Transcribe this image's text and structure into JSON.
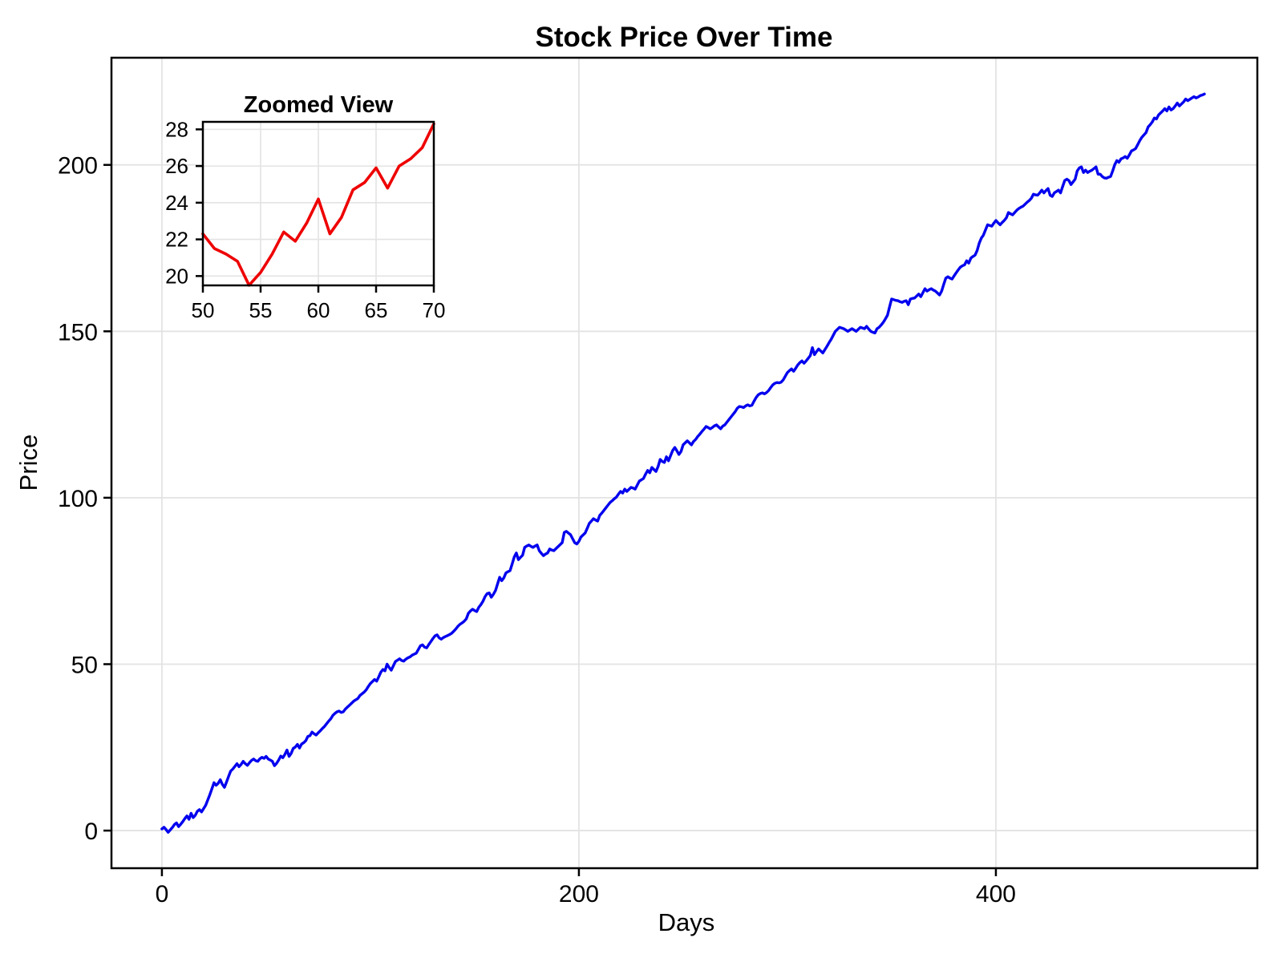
{
  "chart_data": [
    {
      "id": "main",
      "type": "line",
      "title": "Stock Price Over Time",
      "xlabel": "Days",
      "ylabel": "Price",
      "xticks": [
        0,
        200,
        400
      ],
      "yticks": [
        0,
        50,
        100,
        150,
        200
      ],
      "xlim": [
        -24.2,
        525.4
      ],
      "ylim": [
        -11.3,
        232.2
      ],
      "grid": true,
      "legend": "none",
      "series": [
        {
          "name": "price",
          "color": "#0000EE",
          "x_start": 0,
          "x_step": 1,
          "values": [
            0.5,
            1.0,
            0.3,
            -0.5,
            0.2,
            0.9,
            1.8,
            2.3,
            1.2,
            1.9,
            2.7,
            3.6,
            4.4,
            3.4,
            5.2,
            3.9,
            4.6,
            5.8,
            6.3,
            5.6,
            6.6,
            7.6,
            9.2,
            10.8,
            12.6,
            14.4,
            13.6,
            14.2,
            15.3,
            13.9,
            13.0,
            14.6,
            16.3,
            17.9,
            18.5,
            19.3,
            20.1,
            19.2,
            19.9,
            20.8,
            20.1,
            19.6,
            20.4,
            21.1,
            21.5,
            21.0,
            20.8,
            21.6,
            22.0,
            21.7,
            22.3,
            21.5,
            21.2,
            20.8,
            19.5,
            20.2,
            21.2,
            22.4,
            21.9,
            22.9,
            24.2,
            22.3,
            23.2,
            24.7,
            25.1,
            25.9,
            24.8,
            26.0,
            26.4,
            27.0,
            28.3,
            28.5,
            29.6,
            29.1,
            28.7,
            29.4,
            30.0,
            30.7,
            31.3,
            32.1,
            32.9,
            33.6,
            34.6,
            35.2,
            35.7,
            35.9,
            35.5,
            35.7,
            36.5,
            37.1,
            37.7,
            38.3,
            38.9,
            39.3,
            39.7,
            40.6,
            41.1,
            41.6,
            42.3,
            43.3,
            44.2,
            44.8,
            45.4,
            44.9,
            46.2,
            47.6,
            48.4,
            48.0,
            50.0,
            49.0,
            48.2,
            49.5,
            50.8,
            51.2,
            51.6,
            51.1,
            50.9,
            51.5,
            51.9,
            52.2,
            52.7,
            53.0,
            53.3,
            54.4,
            55.5,
            55.8,
            55.1,
            54.9,
            55.9,
            56.8,
            57.7,
            58.5,
            58.8,
            57.9,
            57.5,
            58.0,
            58.3,
            58.6,
            58.9,
            59.3,
            59.9,
            60.6,
            61.4,
            62.0,
            62.4,
            62.9,
            63.6,
            65.3,
            66.0,
            66.5,
            66.1,
            65.8,
            67.1,
            67.9,
            68.9,
            70.3,
            71.2,
            71.4,
            70.1,
            71.0,
            72.1,
            74.1,
            76.1,
            75.1,
            75.9,
            77.4,
            77.8,
            78.1,
            80.1,
            82.2,
            83.4,
            81.4,
            82.1,
            82.7,
            85.1,
            85.5,
            85.8,
            85.4,
            85.1,
            85.5,
            85.8,
            84.1,
            83.3,
            82.6,
            83.1,
            83.4,
            84.6,
            84.3,
            84.1,
            84.7,
            85.3,
            85.9,
            86.5,
            89.6,
            89.9,
            89.4,
            88.9,
            87.7,
            86.5,
            86.1,
            86.9,
            88.2,
            88.8,
            89.4,
            90.8,
            92.3,
            93.0,
            93.7,
            93.3,
            93.0,
            94.7,
            95.4,
            96.2,
            97.0,
            97.8,
            98.6,
            99.1,
            99.7,
            100.2,
            101.1,
            101.9,
            101.4,
            102.6,
            101.9,
            102.5,
            103.1,
            102.9,
            102.6,
            103.8,
            105.0,
            105.4,
            105.8,
            107.1,
            108.2,
            107.5,
            109.1,
            108.5,
            107.9,
            109.4,
            111.5,
            110.9,
            110.6,
            112.3,
            111.1,
            112.7,
            114.2,
            115.1,
            114.1,
            113.0,
            113.9,
            115.9,
            116.5,
            117.1,
            116.5,
            115.9,
            116.9,
            117.5,
            118.4,
            119.1,
            119.9,
            120.6,
            121.4,
            121.1,
            120.7,
            121.1,
            121.6,
            121.9,
            121.3,
            120.7,
            121.5,
            121.9,
            122.7,
            123.5,
            124.3,
            125.1,
            125.9,
            126.9,
            127.4,
            127.3,
            127.1,
            127.6,
            127.9,
            127.6,
            127.8,
            129.0,
            130.1,
            130.9,
            131.3,
            131.5,
            131.2,
            131.6,
            132.2,
            133.1,
            133.9,
            134.4,
            134.6,
            134.5,
            134.7,
            135.4,
            136.5,
            137.6,
            138.2,
            138.7,
            138.0,
            138.9,
            139.9,
            140.6,
            141.1,
            140.4,
            141.1,
            141.9,
            142.7,
            145.1,
            143.0,
            143.9,
            144.7,
            144.1,
            143.5,
            144.5,
            145.5,
            146.6,
            147.6,
            148.8,
            150.0,
            150.6,
            151.2,
            151.0,
            150.8,
            150.4,
            150.0,
            150.4,
            150.8,
            150.4,
            150.0,
            150.6,
            151.2,
            151.0,
            150.8,
            151.5,
            150.7,
            150.0,
            149.7,
            149.5,
            150.8,
            151.2,
            151.9,
            152.7,
            153.7,
            154.8,
            157.3,
            159.7,
            159.5,
            159.3,
            159.2,
            158.9,
            158.7,
            159.0,
            159.2,
            158.0,
            159.7,
            159.9,
            160.0,
            160.6,
            161.2,
            160.4,
            161.6,
            162.8,
            162.1,
            162.5,
            162.8,
            162.4,
            162.1,
            161.5,
            160.9,
            162.1,
            164.1,
            166.0,
            166.4,
            166.0,
            165.7,
            166.7,
            167.6,
            168.5,
            169.3,
            169.7,
            170.0,
            171.2,
            170.5,
            172.0,
            172.5,
            172.9,
            174.3,
            176.5,
            178.0,
            178.9,
            180.5,
            182.0,
            181.8,
            181.6,
            182.5,
            183.3,
            182.6,
            182.0,
            182.7,
            183.3,
            184.1,
            185.7,
            185.3,
            185.0,
            185.7,
            186.4,
            186.9,
            187.3,
            187.6,
            188.2,
            188.8,
            189.3,
            190.0,
            191.2,
            191.0,
            190.9,
            191.6,
            192.4,
            191.6,
            192.3,
            192.9,
            190.9,
            190.5,
            191.6,
            192.0,
            192.4,
            191.6,
            193.5,
            195.3,
            195.7,
            195.3,
            194.1,
            194.9,
            195.7,
            198.2,
            199.1,
            199.4,
            197.7,
            198.4,
            197.7,
            198.1,
            198.4,
            198.9,
            199.4,
            197.2,
            197.2,
            196.5,
            196.1,
            196.0,
            196.3,
            196.5,
            198.2,
            200.1,
            201.3,
            200.8,
            201.8,
            202.1,
            202.5,
            202.0,
            203.0,
            204.2,
            204.5,
            204.9,
            206.1,
            207.3,
            208.3,
            209.0,
            209.7,
            211.4,
            212.1,
            212.9,
            214.1,
            213.8,
            215.0,
            215.6,
            216.2,
            216.9,
            216.2,
            217.4,
            216.5,
            216.9,
            217.7,
            218.6,
            217.7,
            218.3,
            218.9,
            219.8,
            219.3,
            219.7,
            220.1,
            220.5,
            220.1,
            220.4,
            220.8,
            221.0,
            221.3
          ]
        }
      ]
    },
    {
      "id": "inset",
      "type": "line",
      "title": "Zoomed View",
      "xlabel": "",
      "ylabel": "",
      "xticks": [
        50,
        55,
        60,
        65,
        70
      ],
      "yticks": [
        20,
        22,
        24,
        26,
        28
      ],
      "xlim": [
        50,
        70
      ],
      "ylim": [
        19.49,
        28.41
      ],
      "grid": true,
      "legend": "none",
      "series": [
        {
          "name": "price-zoom",
          "color": "#EE0000",
          "x_start": 50,
          "x_step": 1,
          "values": [
            22.3,
            21.5,
            21.2,
            20.8,
            19.5,
            20.2,
            21.2,
            22.4,
            21.9,
            22.9,
            24.2,
            22.3,
            23.2,
            24.7,
            25.1,
            25.9,
            24.8,
            26.0,
            26.4,
            27.0,
            28.3
          ]
        }
      ]
    }
  ]
}
